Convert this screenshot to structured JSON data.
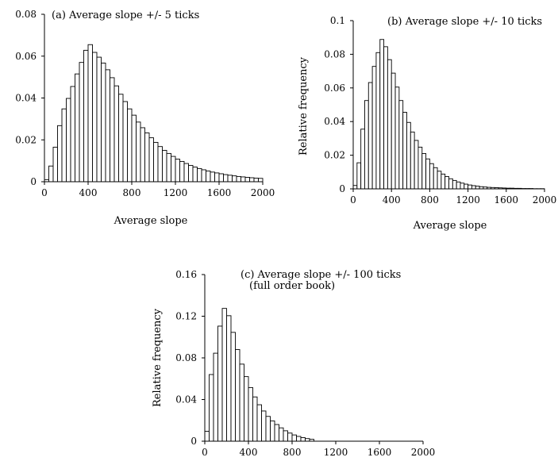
{
  "chart_data": [
    {
      "type": "bar",
      "panel": "a",
      "title": "(a) Average slope +/- 5 ticks",
      "subtitle": "",
      "xlabel": "Average slope",
      "ylabel": "",
      "xlim": [
        0,
        2000
      ],
      "ylim": [
        0,
        0.08
      ],
      "bin_width": 40,
      "x_ticks": [
        0,
        400,
        800,
        1200,
        1600,
        2000
      ],
      "x_tick_labels": [
        "0",
        "400",
        "800",
        "1200",
        "1600",
        "2000"
      ],
      "y_ticks": [
        0,
        0.02,
        0.04,
        0.06,
        0.08
      ],
      "y_tick_labels": [
        "0",
        "0.02",
        "0.04",
        "0.06",
        "0.08"
      ],
      "values": [
        0.001,
        0.0075,
        0.0165,
        0.0268,
        0.0348,
        0.0398,
        0.0455,
        0.0515,
        0.057,
        0.0628,
        0.0655,
        0.0618,
        0.0595,
        0.0567,
        0.0535,
        0.0497,
        0.0458,
        0.0418,
        0.0383,
        0.0348,
        0.0318,
        0.0285,
        0.0258,
        0.0233,
        0.021,
        0.0188,
        0.0168,
        0.015,
        0.0135,
        0.0121,
        0.0108,
        0.0097,
        0.0087,
        0.0078,
        0.007,
        0.0063,
        0.0057,
        0.0051,
        0.0046,
        0.0042,
        0.0038,
        0.0034,
        0.0031,
        0.0028,
        0.0025,
        0.0023,
        0.0021,
        0.0019,
        0.0017,
        0.0016
      ]
    },
    {
      "type": "bar",
      "panel": "b",
      "title": "(b) Average slope +/- 10 ticks",
      "subtitle": "",
      "xlabel": "Average slope",
      "ylabel": "Relative frequency",
      "xlim": [
        0,
        2000
      ],
      "ylim": [
        0,
        0.1
      ],
      "bin_width": 40,
      "x_ticks": [
        0,
        400,
        800,
        1200,
        1600,
        2000
      ],
      "x_tick_labels": [
        "0",
        "400",
        "800",
        "1200",
        "1600",
        "2000"
      ],
      "y_ticks": [
        0,
        0.02,
        0.04,
        0.06,
        0.08,
        0.1
      ],
      "y_tick_labels": [
        "0",
        "0.02",
        "0.04",
        "0.06",
        "0.08",
        "0.1"
      ],
      "values": [
        0.002,
        0.0155,
        0.0355,
        0.0525,
        0.0632,
        0.0728,
        0.081,
        0.0888,
        0.0845,
        0.0768,
        0.0688,
        0.0605,
        0.0525,
        0.0455,
        0.0395,
        0.0338,
        0.0288,
        0.0248,
        0.021,
        0.0178,
        0.015,
        0.0126,
        0.0105,
        0.0088,
        0.0073,
        0.006,
        0.005,
        0.0041,
        0.0034,
        0.0028,
        0.0023,
        0.0019,
        0.0016,
        0.0013,
        0.0011,
        0.0009,
        0.0008,
        0.0007,
        0.0006,
        0.0005,
        0.0004,
        0.0004,
        0.0003,
        0.0003,
        0.0002,
        0.0002,
        0.0002,
        0.0001,
        0.0001,
        0.0001
      ]
    },
    {
      "type": "bar",
      "panel": "c",
      "title": "(c) Average slope +/- 100 ticks",
      "subtitle": "(full order book)",
      "xlabel": "",
      "ylabel": "Relative frequency",
      "xlim": [
        0,
        2000
      ],
      "ylim": [
        0,
        0.16
      ],
      "bin_width": 40,
      "x_ticks": [
        0,
        400,
        800,
        1200,
        1600,
        2000
      ],
      "x_tick_labels": [
        "0",
        "400",
        "800",
        "1200",
        "1600",
        "2000"
      ],
      "y_ticks": [
        0,
        0.04,
        0.08,
        0.12,
        0.16
      ],
      "y_tick_labels": [
        "0",
        "0.04",
        "0.08",
        "0.12",
        "0.16"
      ],
      "values": [
        0.0095,
        0.064,
        0.0845,
        0.1105,
        0.1275,
        0.1205,
        0.1045,
        0.088,
        0.074,
        0.062,
        0.0515,
        0.0425,
        0.035,
        0.029,
        0.0238,
        0.0195,
        0.016,
        0.0128,
        0.01,
        0.0078,
        0.006,
        0.0046,
        0.0034,
        0.0025,
        0.0018
      ]
    }
  ]
}
